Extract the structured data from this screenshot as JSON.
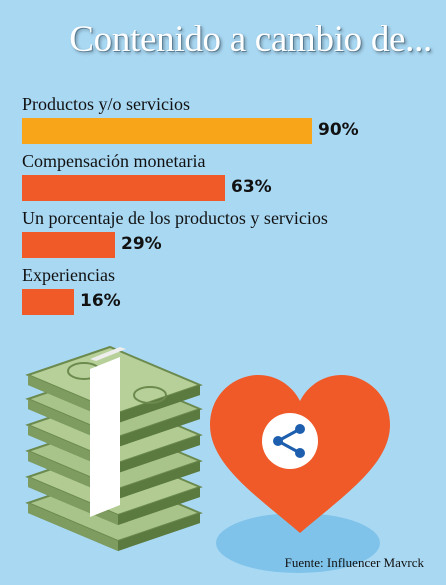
{
  "title": "Contenido a cambio de...",
  "source": "Fuente: Influencer Mavrck",
  "colors": {
    "first": "#f9a51a",
    "rest": "#f05a28",
    "background": "#a9d8f3"
  },
  "icons": [
    "money-stack-icon",
    "heart-share-icon"
  ],
  "chart_data": {
    "type": "bar",
    "orientation": "horizontal",
    "title": "Contenido a cambio de...",
    "categories": [
      "Productos y/o servicios",
      "Compensación monetaria",
      "Un porcentaje de los productos y servicios",
      "Experiencias"
    ],
    "values": [
      90,
      63,
      29,
      16
    ],
    "value_labels": [
      "90%",
      "63%",
      "29%",
      "16%"
    ],
    "xlim": [
      0,
      100
    ],
    "grid": false,
    "legend": "none"
  }
}
